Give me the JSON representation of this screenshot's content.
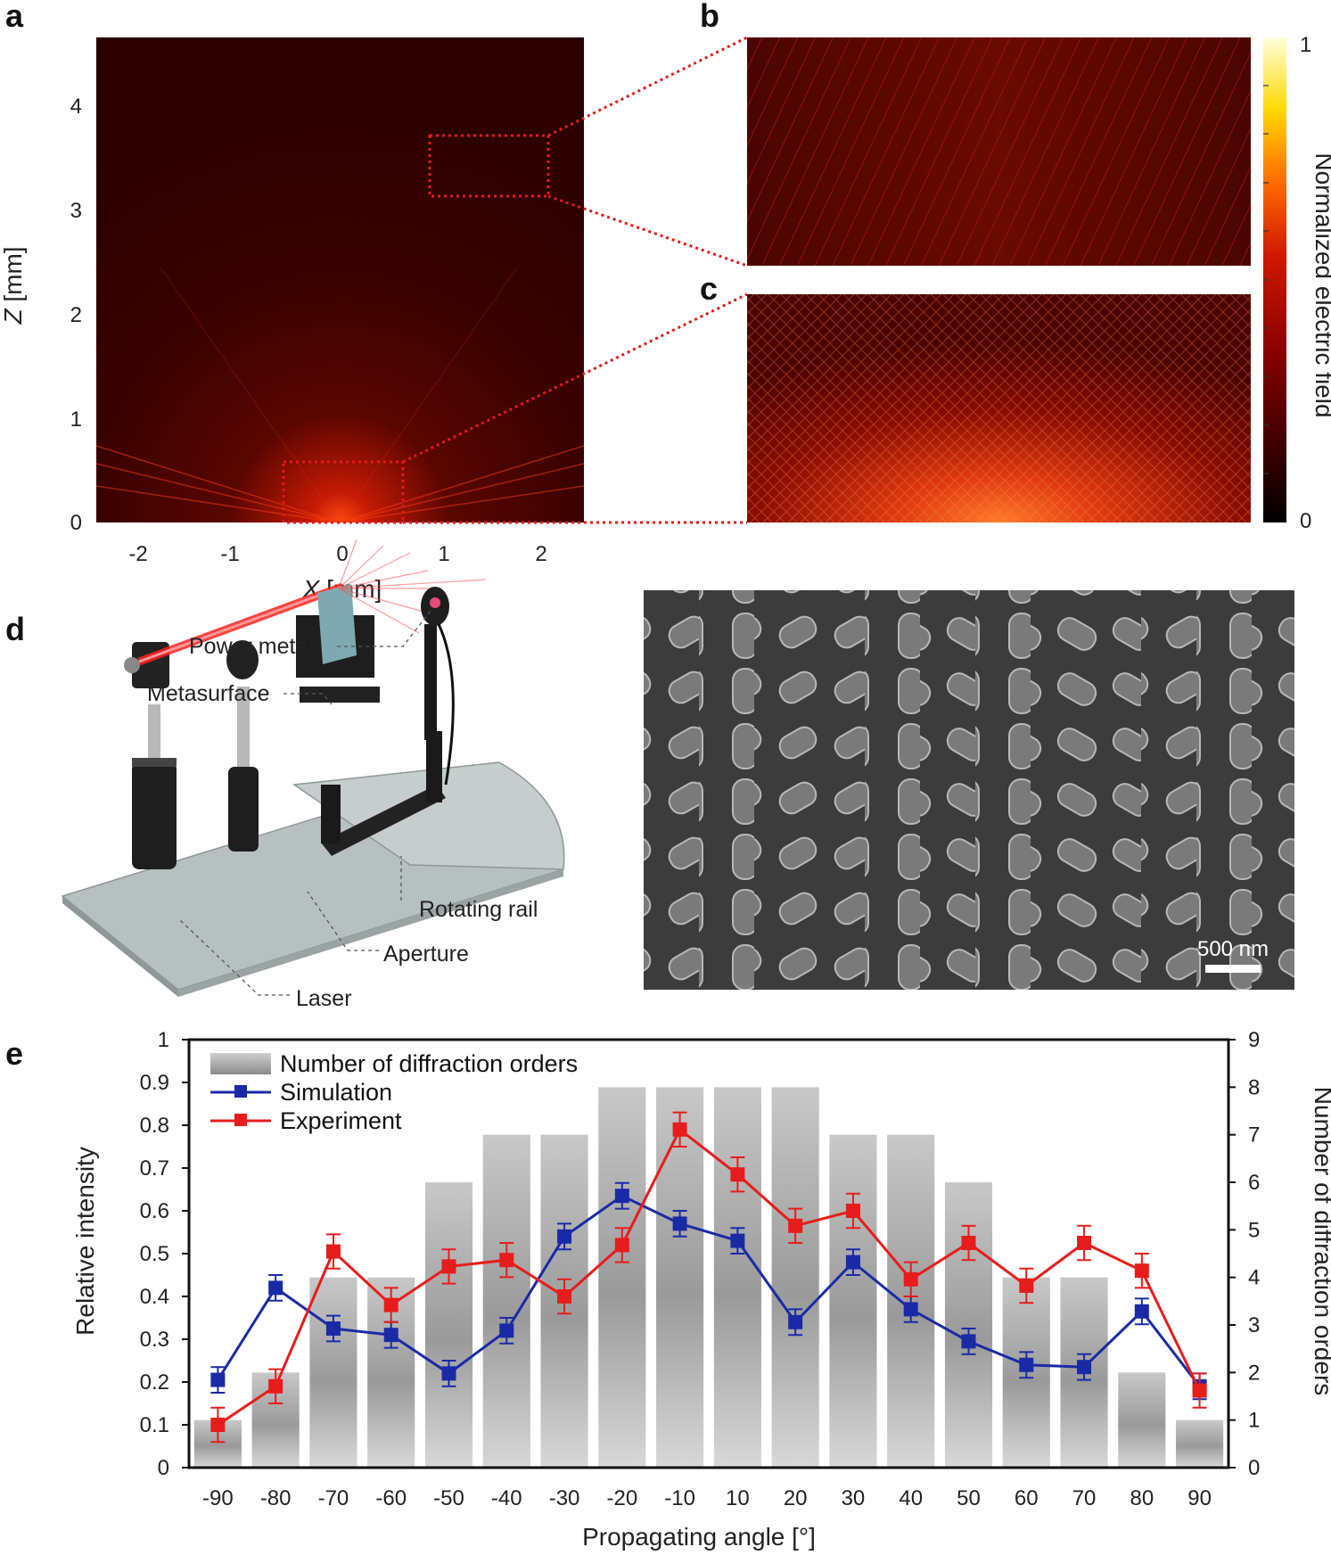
{
  "panels": {
    "a": "a",
    "b": "b",
    "c": "c",
    "d": "d",
    "e": "e"
  },
  "panel_a": {
    "x_label_var": "X",
    "x_label_unit": " [mm]",
    "y_label_var": "Z",
    "y_label_unit": " [mm]",
    "x_ticks": [
      "-2",
      "-1",
      "0",
      "1",
      "2"
    ],
    "y_ticks": [
      "0",
      "1",
      "2",
      "3",
      "4"
    ],
    "colormap_colors": [
      "#000000",
      "#3a0000",
      "#8a0000",
      "#d01800",
      "#ff6a00",
      "#ffd800",
      "#ffffdc"
    ]
  },
  "colorbar": {
    "label": "Normalized electric field",
    "max": "1",
    "min": "0"
  },
  "panel_d": {
    "callouts": {
      "power_meter": "Power meter",
      "metasurface": "Metasurface",
      "rotating_rail": "Rotating rail",
      "aperture": "Aperture",
      "laser": "Laser"
    },
    "scale_bar": "500 nm"
  },
  "chart_data": {
    "type": "bar+line",
    "xlabel": "Propagating angle [°]",
    "ylabel": "Relative intensity",
    "y2label": "Number of diffraction orders",
    "categories": [
      "-90",
      "-80",
      "-70",
      "-60",
      "-50",
      "-40",
      "-30",
      "-20",
      "-10",
      "10",
      "20",
      "30",
      "40",
      "50",
      "60",
      "70",
      "80",
      "90"
    ],
    "ylim": [
      0,
      1
    ],
    "y_ticks": [
      "0",
      "0.1",
      "0.2",
      "0.3",
      "0.4",
      "0.5",
      "0.6",
      "0.7",
      "0.8",
      "0.9",
      "1"
    ],
    "y2lim": [
      0,
      9
    ],
    "y2_ticks": [
      "0",
      "1",
      "2",
      "3",
      "4",
      "5",
      "6",
      "7",
      "8",
      "9"
    ],
    "series": [
      {
        "name": "Number of diffraction orders",
        "kind": "bar",
        "axis": "right",
        "color": "#a0a0a0",
        "values": [
          1,
          2,
          4,
          4,
          6,
          7,
          7,
          8,
          8,
          8,
          8,
          7,
          7,
          6,
          4,
          4,
          2,
          1
        ]
      },
      {
        "name": "Simulation",
        "kind": "line",
        "axis": "left",
        "color": "#1a2aa6",
        "values": [
          0.205,
          0.42,
          0.325,
          0.31,
          0.22,
          0.32,
          0.54,
          0.635,
          0.57,
          0.53,
          0.34,
          0.48,
          0.37,
          0.295,
          0.24,
          0.235,
          0.365,
          0.19
        ],
        "error": 0.03
      },
      {
        "name": "Experiment",
        "kind": "line",
        "axis": "left",
        "color": "#e81c1c",
        "values": [
          0.1,
          0.19,
          0.505,
          0.38,
          0.47,
          0.485,
          0.4,
          0.52,
          0.79,
          0.685,
          0.565,
          0.6,
          0.44,
          0.525,
          0.425,
          0.525,
          0.46,
          0.18
        ],
        "error": 0.04
      }
    ],
    "legend_position": "top-left"
  }
}
